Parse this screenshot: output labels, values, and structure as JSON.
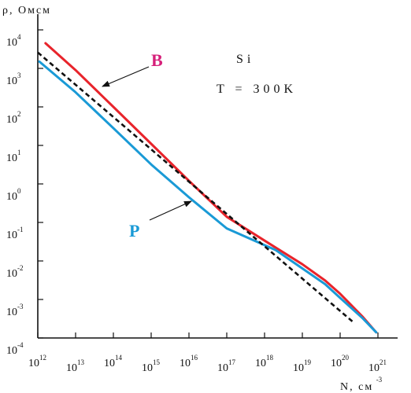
{
  "chart_data": {
    "type": "line",
    "title": "",
    "xlabel": "N, см",
    "xlabel_exponent": "-3",
    "ylabel": "ρ, Омсм",
    "x_scale": "log",
    "y_scale": "log",
    "xlim": [
      1000000000000.0,
      1e+21
    ],
    "ylim": [
      0.0001,
      10000.0
    ],
    "grid": false,
    "legend": "none",
    "x_ticks": [
      {
        "base": "10",
        "exp": "12"
      },
      {
        "base": "10",
        "exp": "13"
      },
      {
        "base": "10",
        "exp": "14"
      },
      {
        "base": "10",
        "exp": "15"
      },
      {
        "base": "10",
        "exp": "16"
      },
      {
        "base": "10",
        "exp": "17"
      },
      {
        "base": "10",
        "exp": "18"
      },
      {
        "base": "10",
        "exp": "19"
      },
      {
        "base": "10",
        "exp": "20"
      },
      {
        "base": "10",
        "exp": "21"
      }
    ],
    "y_ticks": [
      {
        "base": "10",
        "exp": "4"
      },
      {
        "base": "10",
        "exp": "3"
      },
      {
        "base": "10",
        "exp": "2"
      },
      {
        "base": "10",
        "exp": "1"
      },
      {
        "base": "10",
        "exp": "0"
      },
      {
        "base": "10",
        "exp": "-1"
      },
      {
        "base": "10",
        "exp": "-2"
      },
      {
        "base": "10",
        "exp": "-3"
      },
      {
        "base": "10",
        "exp": "-4"
      }
    ],
    "annotations": {
      "material": "Si",
      "temperature": "T = 300K"
    },
    "series": [
      {
        "name": "B",
        "color": "#e8242b",
        "label_color": "#d6207a",
        "points": [
          [
            1600000000000.0,
            4500
          ],
          [
            10000000000000.0,
            900
          ],
          [
            100000000000000.0,
            100
          ],
          [
            1000000000000000.0,
            11
          ],
          [
            1e+16,
            1.2
          ],
          [
            1e+17,
            0.14
          ],
          [
            2e+18,
            0.022
          ],
          [
            1e+19,
            0.0082
          ],
          [
            4e+19,
            0.0031
          ],
          [
            1e+20,
            0.0014
          ],
          [
            4e+20,
            0.00035
          ],
          [
            9e+20,
            0.00014
          ]
        ]
      },
      {
        "name": "P",
        "color": "#1a9ad6",
        "label_color": "#1a9ad6",
        "points": [
          [
            1100000000000.0,
            1500
          ],
          [
            10000000000000.0,
            240
          ],
          [
            100000000000000.0,
            28
          ],
          [
            1000000000000000.0,
            3.2
          ],
          [
            1e+16,
            0.45
          ],
          [
            1e+17,
            0.07
          ],
          [
            2e+18,
            0.019
          ],
          [
            1e+19,
            0.0064
          ],
          [
            4e+19,
            0.0025
          ],
          [
            1e+20,
            0.0011
          ],
          [
            4e+20,
            0.00032
          ],
          [
            9e+20,
            0.00014
          ]
        ]
      },
      {
        "name": "",
        "color": "#111111",
        "dashed": true,
        "points": [
          [
            1000000000000.0,
            2600
          ],
          [
            2.3e+20,
            0.00025
          ]
        ]
      }
    ]
  }
}
